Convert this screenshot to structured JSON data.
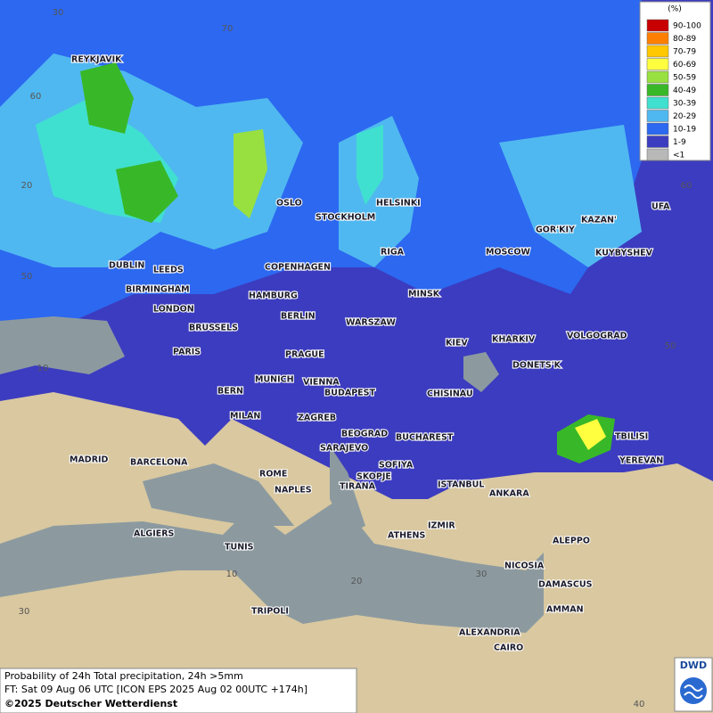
{
  "cities": [
    "REYKJAVIK",
    "OSLO",
    "STOCKHOLM",
    "HELSINKI",
    "GOR'KIY",
    "KAZAN'",
    "UFA",
    "RIGA",
    "MOSCOW",
    "KUYBYSHEV",
    "DUBLIN",
    "LEEDS",
    "COPENHAGEN",
    "BIRMINGHAM",
    "MINSK",
    "HAMBURG",
    "LONDON",
    "BERLIN",
    "BRUSSELS",
    "WARSZAW",
    "VOLGOGRAD",
    "KIEV",
    "KHARKIV",
    "PARIS",
    "PRAGUE",
    "DONETS'K",
    "BERN",
    "MUNICH",
    "VIENNA",
    "BUDAPEST",
    "CHISINAU",
    "MILAN",
    "ZAGREB",
    "BEOGRAD",
    "TBILISI",
    "BUCHAREST",
    "SARAJEVO",
    "MADRID",
    "BARCELONA",
    "SOFIYA",
    "YEREVAN",
    "ROME",
    "SKOPJE",
    "NAPLES",
    "TIRANA",
    "ISTANBUL",
    "ANKARA",
    "ALGIERS",
    "IZMIR",
    "ATHENS",
    "ALEPPO",
    "TUNIS",
    "NICOSIA",
    "DAMASCUS",
    "TRIPOLI",
    "AMMAN",
    "ALEXANDRIA",
    "CAIRO"
  ],
  "graticule_labels": [
    "30",
    "70",
    "60",
    "20",
    "50",
    "10",
    "60",
    "50",
    "10",
    "20",
    "30",
    "30",
    "40"
  ],
  "legend": {
    "title": "(%)",
    "items": [
      {
        "label": "90-100",
        "color": "#c80000"
      },
      {
        "label": "80-89",
        "color": "#ff8000"
      },
      {
        "label": "70-79",
        "color": "#ffc800"
      },
      {
        "label": "60-69",
        "color": "#ffff40"
      },
      {
        "label": "50-59",
        "color": "#98e040"
      },
      {
        "label": "40-49",
        "color": "#38b828"
      },
      {
        "label": "30-39",
        "color": "#40e0d0"
      },
      {
        "label": "20-29",
        "color": "#50b8f0"
      },
      {
        "label": "10-19",
        "color": "#2c68f0"
      },
      {
        "label": "1-9",
        "color": "#3c3cc0"
      },
      {
        "label": "<1",
        "color": "#b8b8b8"
      }
    ]
  },
  "footer": {
    "line1": "Probability of 24h Total precipitation, 24h >5mm",
    "line2": "FT: Sat 09 Aug 06 UTC [ICON EPS 2025 Aug 02 00UTC +174h]",
    "copyright": "©2025 Deutscher Wetterdienst",
    "logo": "DWD"
  }
}
